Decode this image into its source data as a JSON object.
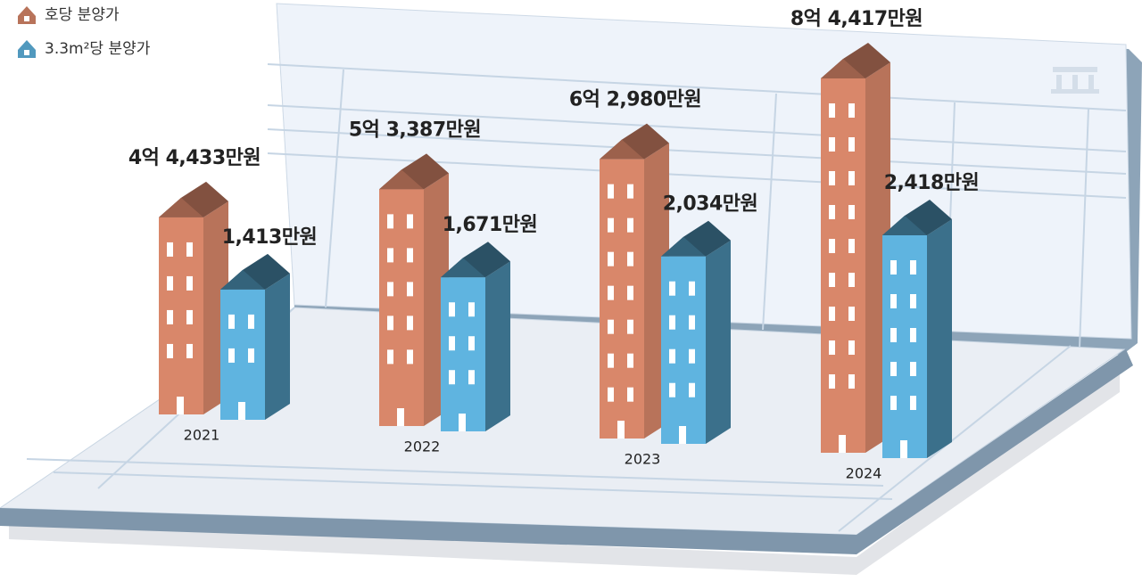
{
  "chart_data": {
    "type": "bar",
    "categories": [
      "2021",
      "2022",
      "2023",
      "2024"
    ],
    "series": [
      {
        "name": "호당 분양가",
        "color": "#d9876a",
        "values": [
          44433,
          53387,
          62980,
          84417
        ],
        "value_labels": [
          "4억 4,433만원",
          "5억 3,387만원",
          "6억 2,980만원",
          "8억 4,417만원"
        ]
      },
      {
        "name": "3.3m²당 분양가",
        "color": "#5fb4e0",
        "values": [
          1413,
          1671,
          2034,
          2418
        ],
        "value_labels": [
          "1,413만원",
          "1,671만원",
          "2,034만원",
          "2,418만원"
        ]
      }
    ]
  }
}
